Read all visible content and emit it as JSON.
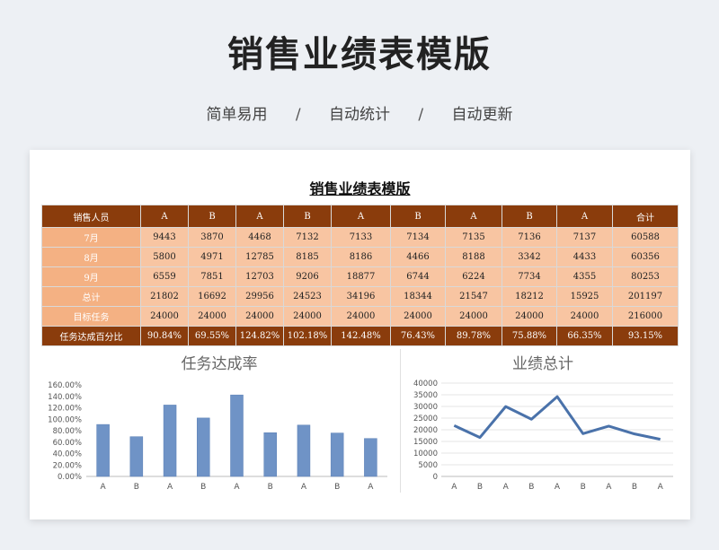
{
  "page": {
    "title": "销售业绩表模版",
    "subtitle_items": [
      "简单易用",
      "自动统计",
      "自动更新"
    ],
    "subtitle_sep": "/"
  },
  "sheet": {
    "title": "销售业绩表模版",
    "header": [
      "销售人员",
      "A",
      "B",
      "A",
      "B",
      "A",
      "B",
      "A",
      "B",
      "A",
      "合计"
    ],
    "rows": [
      {
        "label": "7月",
        "cells": [
          "9443",
          "3870",
          "4468",
          "7132",
          "7133",
          "7134",
          "7135",
          "7136",
          "7137",
          "60588"
        ]
      },
      {
        "label": "8月",
        "cells": [
          "5800",
          "4971",
          "12785",
          "8185",
          "8186",
          "4466",
          "8188",
          "3342",
          "4433",
          "60356"
        ]
      },
      {
        "label": "9月",
        "cells": [
          "6559",
          "7851",
          "12703",
          "9206",
          "18877",
          "6744",
          "6224",
          "7734",
          "4355",
          "80253"
        ]
      },
      {
        "label": "总计",
        "cells": [
          "21802",
          "16692",
          "29956",
          "24523",
          "34196",
          "18344",
          "21547",
          "18212",
          "15925",
          "201197"
        ]
      },
      {
        "label": "目标任务",
        "cells": [
          "24000",
          "24000",
          "24000",
          "24000",
          "24000",
          "24000",
          "24000",
          "24000",
          "24000",
          "216000"
        ]
      }
    ],
    "pct_row": {
      "label": "任务达成百分比",
      "cells": [
        "90.84%",
        "69.55%",
        "124.82%",
        "102.18%",
        "142.48%",
        "76.43%",
        "89.78%",
        "75.88%",
        "66.35%",
        "93.15%"
      ]
    }
  },
  "colors": {
    "header_bg": "#8a3c0c",
    "row_bg": "#f8c5a2",
    "label_bg": "#f4b183",
    "bar": "#6f93c6",
    "line": "#4a72aa"
  },
  "chart_data": [
    {
      "type": "bar",
      "title": "任务达成率",
      "categories": [
        "A",
        "B",
        "A",
        "B",
        "A",
        "B",
        "A",
        "B",
        "A"
      ],
      "values": [
        90.84,
        69.55,
        124.82,
        102.18,
        142.48,
        76.43,
        89.78,
        75.88,
        66.35
      ],
      "ylim": [
        0,
        160
      ],
      "yticks": [
        "0.00%",
        "20.00%",
        "40.00%",
        "60.00%",
        "80.00%",
        "100.00%",
        "120.00%",
        "140.00%",
        "160.00%"
      ],
      "grid": false
    },
    {
      "type": "line",
      "title": "业绩总计",
      "categories": [
        "A",
        "B",
        "A",
        "B",
        "A",
        "B",
        "A",
        "B",
        "A"
      ],
      "values": [
        21802,
        16692,
        29956,
        24523,
        34196,
        18344,
        21547,
        18212,
        15925
      ],
      "ylim": [
        0,
        40000
      ],
      "yticks": [
        "0",
        "5000",
        "10000",
        "15000",
        "20000",
        "25000",
        "30000",
        "35000",
        "40000"
      ],
      "grid": true
    }
  ]
}
